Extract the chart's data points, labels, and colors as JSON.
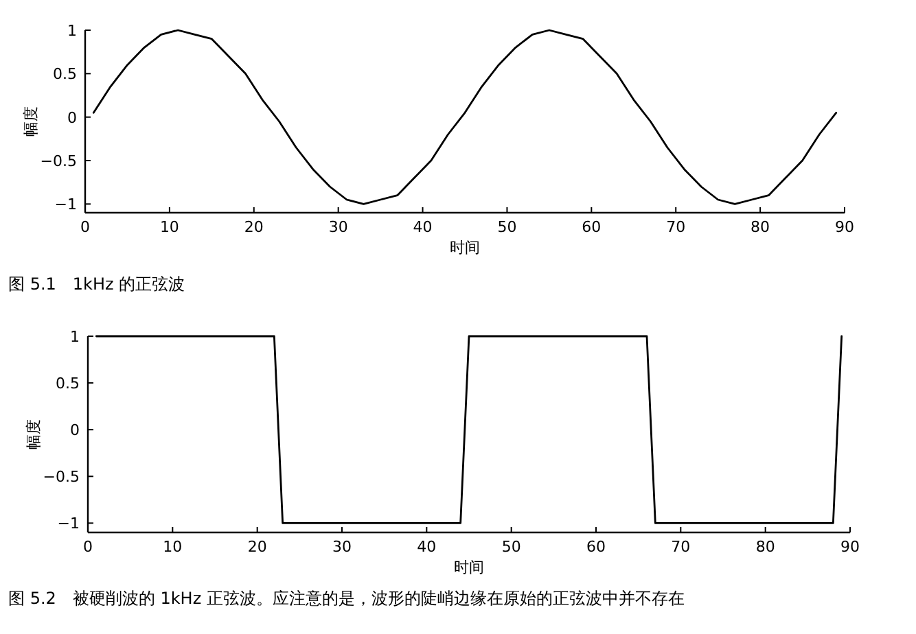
{
  "chart_data": [
    {
      "type": "line",
      "xlabel": "时间",
      "ylabel": "幅度",
      "annotations": [
        "图 5.1　1kHz 的正弦波"
      ],
      "color": "#000000",
      "x": [
        1,
        3,
        5,
        7,
        9,
        11,
        13,
        15,
        17,
        19,
        21,
        23,
        25,
        27,
        29,
        31,
        33,
        35,
        37,
        39,
        41,
        43,
        45,
        47,
        49,
        51,
        53,
        55,
        57,
        59,
        61,
        63,
        65,
        67,
        69,
        71,
        73,
        75,
        77,
        79,
        81,
        83,
        85,
        87,
        89
      ],
      "values": [
        0.05,
        0.35,
        0.6,
        0.8,
        0.95,
        1,
        0.95,
        0.9,
        0.7,
        0.5,
        0.2,
        -0.05,
        -0.35,
        -0.6,
        -0.8,
        -0.95,
        -1,
        -0.95,
        -0.9,
        -0.7,
        -0.5,
        -0.2,
        0.05,
        0.35,
        0.6,
        0.8,
        0.95,
        1,
        0.95,
        0.9,
        0.7,
        0.5,
        0.2,
        -0.05,
        -0.35,
        -0.6,
        -0.8,
        -0.95,
        -1,
        -0.95,
        -0.9,
        -0.7,
        -0.5,
        -0.2,
        0.05
      ],
      "xlim": [
        0,
        90
      ],
      "ylim": [
        -1.1,
        1
      ],
      "xticks": [
        0,
        10,
        20,
        30,
        40,
        50,
        60,
        70,
        80,
        90
      ],
      "yticks": [
        -1,
        -0.5,
        0,
        0.5,
        1
      ]
    },
    {
      "type": "line",
      "xlabel": "时间",
      "ylabel": "幅度",
      "annotations": [
        "图 5.2　被硬削波的 1kHz 正弦波。应注意的是，波形的陡峭边缘在原始的正弦波中并不存在"
      ],
      "color": "#000000",
      "x": [
        1,
        22,
        23,
        44,
        45,
        66,
        67,
        88,
        89
      ],
      "values": [
        1,
        1,
        -1,
        -1,
        1,
        1,
        -1,
        -1,
        1
      ],
      "xlim": [
        0,
        90
      ],
      "ylim": [
        -1.1,
        1
      ],
      "xticks": [
        0,
        10,
        20,
        30,
        40,
        50,
        60,
        70,
        80,
        90
      ],
      "yticks": [
        -1,
        -0.5,
        0,
        0.5,
        1
      ]
    }
  ]
}
